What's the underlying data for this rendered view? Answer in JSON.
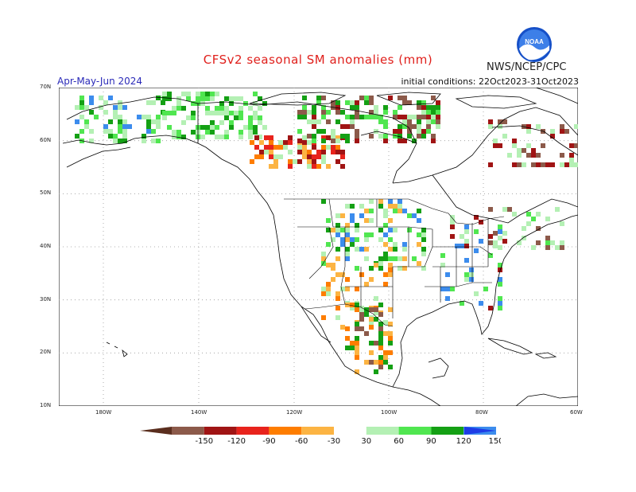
{
  "header": {
    "title": "CFSv2 seasonal SM anomalies (mm)",
    "agency": "NWS/NCEP/CPC",
    "season": "Apr-May-Jun 2024",
    "initial_conditions": "initial conditions: 22Oct2023-31Oct2023",
    "logo_text": "NOAA"
  },
  "map": {
    "lat_labels": [
      "70N",
      "60N",
      "50N",
      "40N",
      "30N",
      "20N",
      "10N"
    ],
    "lon_labels": [
      "180W",
      "140W",
      "120W",
      "100W",
      "80W",
      "60W"
    ]
  },
  "legend": {
    "labels": [
      "-150",
      "-120",
      "-90",
      "-60",
      "-30",
      "30",
      "60",
      "90",
      "120",
      "150"
    ],
    "colors": {
      "below_min": "#5a2e1e",
      "bin1": "#8c5a4a",
      "bin2": "#a01414",
      "bin3": "#e8231c",
      "bin4": "#fe7d00",
      "bin5": "#fcb443",
      "neutral": "#ffffff",
      "bin6": "#b4f0b4",
      "bin7": "#50e650",
      "bin8": "#14a014",
      "bin9": "#3c8ced",
      "above_max": "#1e3ce6"
    }
  }
}
